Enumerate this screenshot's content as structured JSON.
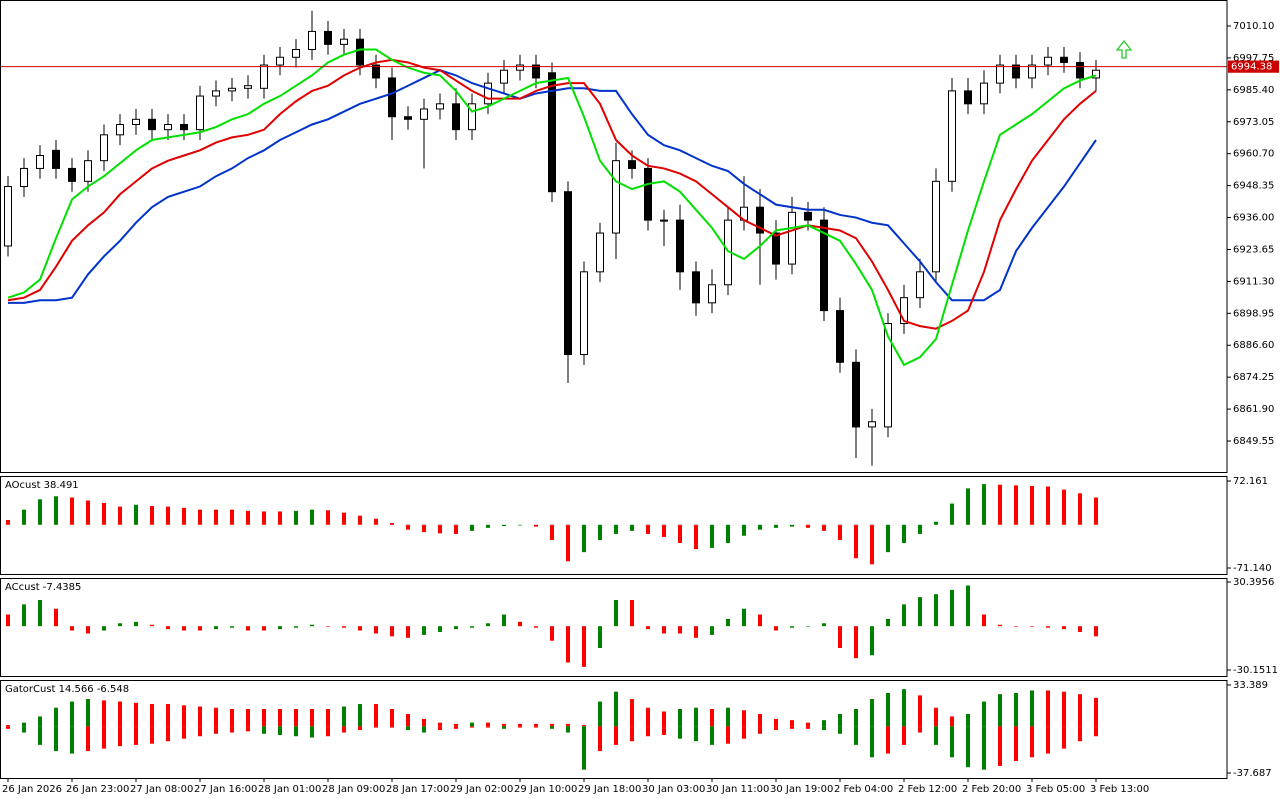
{
  "chart_data": [
    {
      "type": "candlestick",
      "categories": [
        "26 Jan 2026",
        null,
        null,
        null,
        "26 Jan 23:00",
        null,
        null,
        null,
        "27 Jan 08:00",
        null,
        null,
        null,
        "27 Jan 16:00",
        null,
        null,
        null,
        "28 Jan 01:00",
        null,
        null,
        null,
        "28 Jan 09:00",
        null,
        null,
        null,
        "28 Jan 17:00",
        null,
        null,
        null,
        "29 Jan 02:00",
        null,
        null,
        null,
        "29 Jan 10:00",
        null,
        null,
        null,
        "29 Jan 18:00",
        null,
        null,
        null,
        "30 Jan 03:00",
        null,
        null,
        null,
        "30 Jan 11:00",
        null,
        null,
        null,
        "30 Jan 19:00",
        null,
        null,
        null,
        "2 Feb 04:00",
        null,
        null,
        null,
        "2 Feb 12:00",
        null,
        null,
        null,
        "2 Feb 20:00",
        null,
        null,
        null,
        "3 Feb 05:00",
        null,
        null,
        null,
        "3 Feb 13:00"
      ],
      "open": [
        6925,
        6948,
        6955,
        6962,
        6955,
        6950,
        6958,
        6968,
        6972,
        6974,
        6970,
        6972,
        6970,
        6983,
        6985,
        6986,
        6986,
        6995,
        6998,
        7001,
        7008,
        7003,
        7005,
        6995,
        6990,
        6975,
        6974,
        6978,
        6980,
        6970,
        6980,
        6988,
        6993,
        6995,
        6992,
        6946,
        6883,
        6915,
        6930,
        6958,
        6955,
        6935,
        6935,
        6915,
        6903,
        6910,
        6935,
        6940,
        6930,
        6918,
        6938,
        6935,
        6900,
        6880,
        6855,
        6855,
        6895,
        6905,
        6915,
        6950,
        6985,
        6980,
        6988,
        6995,
        6990,
        6995,
        6998,
        6996,
        6990
      ],
      "high": [
        6952,
        6959,
        6964,
        6966,
        6959,
        6962,
        6972,
        6976,
        6978,
        6978,
        6976,
        6976,
        6987,
        6989,
        6990,
        6991,
        6999,
        7002,
        7005,
        7016,
        7012,
        7009,
        7009,
        6999,
        6994,
        6979,
        6982,
        6984,
        6986,
        6984,
        6992,
        6997,
        6999,
        6999,
        6996,
        6950,
        6919,
        6934,
        6965,
        6962,
        6959,
        6939,
        6941,
        6919,
        6916,
        6940,
        6952,
        6947,
        6935,
        6944,
        6942,
        6940,
        6905,
        6885,
        6862,
        6899,
        6910,
        6920,
        6955,
        6990,
        6990,
        6993,
        6999,
        6999,
        6999,
        7002,
        7002,
        7000,
        6997
      ],
      "low": [
        6921,
        6944,
        6951,
        6951,
        6946,
        6946,
        6954,
        6964,
        6968,
        6966,
        6966,
        6966,
        6966,
        6979,
        6981,
        6982,
        6982,
        6991,
        6994,
        6997,
        6999,
        6999,
        6991,
        6986,
        6966,
        6970,
        6955,
        6974,
        6966,
        6966,
        6976,
        6984,
        6989,
        6986,
        6942,
        6872,
        6879,
        6911,
        6920,
        6951,
        6931,
        6925,
        6908,
        6898,
        6899,
        6906,
        6931,
        6910,
        6912,
        6914,
        6931,
        6896,
        6876,
        6843,
        6840,
        6851,
        6891,
        6901,
        6911,
        6946,
        6976,
        6976,
        6984,
        6986,
        6986,
        6991,
        6992,
        6986,
        6985
      ],
      "close": [
        6948,
        6955,
        6960,
        6955,
        6950,
        6958,
        6968,
        6972,
        6974,
        6970,
        6972,
        6970,
        6983,
        6985,
        6986,
        6987,
        6995,
        6998,
        7001,
        7008,
        7003,
        7005,
        6995,
        6990,
        6975,
        6974,
        6978,
        6980,
        6970,
        6980,
        6988,
        6993,
        6995,
        6990,
        6946,
        6883,
        6915,
        6930,
        6958,
        6955,
        6935,
        6935,
        6915,
        6903,
        6910,
        6935,
        6940,
        6930,
        6918,
        6938,
        6935,
        6900,
        6880,
        6855,
        6857,
        6895,
        6905,
        6915,
        6950,
        6985,
        6980,
        6988,
        6995,
        6990,
        6995,
        6998,
        6996,
        6990,
        6993
      ],
      "up_color": "#ffffff",
      "down_color": "#000000",
      "series": [
        {
          "color": "#0033cc",
          "values": [
            6903,
            6903,
            6904,
            6904,
            6905,
            6914,
            6921,
            6927,
            6934,
            6940,
            6944,
            6946,
            6948,
            6952,
            6955,
            6959,
            6962,
            6966,
            6969,
            6972,
            6974,
            6977,
            6980,
            6982,
            6984,
            6987,
            6990,
            6993,
            6991,
            6988,
            6986,
            6984,
            6982,
            6984,
            6985,
            6986,
            6986,
            6985,
            6985,
            6976,
            6968,
            6964,
            6962,
            6959,
            6956,
            6954,
            6949,
            6945,
            6941,
            6940,
            6939,
            6939,
            6937,
            6936,
            6934,
            6933,
            6926,
            6919,
            6911,
            6904,
            6904,
            6904,
            6908,
            6923,
            6932,
            6940,
            6948,
            6957,
            6966
          ]
        },
        {
          "color": "#e00000",
          "values": [
            6904,
            6905,
            6908,
            6917,
            6927,
            6933,
            6938,
            6945,
            6950,
            6955,
            6958,
            6960,
            6962,
            6965,
            6967,
            6968,
            6970,
            6976,
            6981,
            6985,
            6987,
            6991,
            6994,
            6996,
            6997,
            6996,
            6994,
            6993,
            6989,
            6985,
            6982,
            6982,
            6982,
            6985,
            6987,
            6988,
            6988,
            6980,
            6966,
            6960,
            6956,
            6955,
            6953,
            6950,
            6945,
            6940,
            6935,
            6932,
            6929,
            6931,
            6933,
            6932,
            6931,
            6928,
            6919,
            6908,
            6896,
            6894,
            6893,
            6896,
            6900,
            6915,
            6935,
            6947,
            6958,
            6966,
            6974,
            6980,
            6985
          ]
        },
        {
          "color": "#00e000",
          "values": [
            6905,
            6907,
            6912,
            6928,
            6943,
            6948,
            6952,
            6957,
            6962,
            6966,
            6967,
            6968,
            6969,
            6971,
            6974,
            6976,
            6980,
            6983,
            6987,
            6991,
            6996,
            6999,
            7001,
            7001,
            6997,
            6994,
            6992,
            6991,
            6985,
            6977,
            6979,
            6982,
            6985,
            6988,
            6989,
            6990,
            6975,
            6958,
            6950,
            6947,
            6949,
            6950,
            6946,
            6939,
            6932,
            6923,
            6920,
            6925,
            6931,
            6932,
            6933,
            6930,
            6927,
            6918,
            6908,
            6890,
            6879,
            6882,
            6889,
            6910,
            6931,
            6950,
            6968,
            6972,
            6976,
            6981,
            6986,
            6989,
            6991
          ]
        }
      ],
      "last_price": 6994.38,
      "last_price_color": "#cc0000",
      "ylim": [
        6837.56,
        7020.16
      ],
      "yticks": [
        {
          "value": 7010.1,
          "label": "7010.10"
        },
        6997.75,
        {
          "value": 6985.4,
          "label": "6985.40"
        },
        6973.05,
        {
          "value": 6960.7,
          "label": "6960.70"
        },
        6948.35,
        {
          "value": 6936,
          "label": "6936.00"
        },
        6923.65,
        {
          "value": 6911.3,
          "label": "6911.30"
        },
        6898.95,
        {
          "value": 6886.6,
          "label": "6886.60"
        },
        6874.25,
        {
          "value": 6861.9,
          "label": "6861.90"
        },
        6849.55
      ]
    },
    {
      "type": "bar",
      "title": "AOcust 38.491",
      "values": [
        8,
        25,
        42,
        47,
        45,
        40,
        36,
        30,
        33,
        31,
        30,
        28,
        25,
        25,
        25,
        23,
        22,
        22,
        23,
        25,
        24,
        20,
        15,
        10,
        3,
        -8,
        -12,
        -14,
        -15,
        -10,
        -5,
        -2,
        -1,
        -3,
        -25,
        -60,
        -45,
        -25,
        -15,
        -10,
        -15,
        -20,
        -30,
        -40,
        -38,
        -30,
        -18,
        -8,
        -5,
        -3,
        -5,
        -10,
        -25,
        -55,
        -65,
        -45,
        -30,
        -15,
        5,
        35,
        60,
        67,
        66,
        65,
        64,
        63,
        58,
        52,
        45
      ],
      "up_color": "#008000",
      "down_color": "#ff0000",
      "ylim": [
        -81.0,
        80.4
      ],
      "yticks": [
        72.161,
        {
          "value": -71.14,
          "label": "-71.140"
        }
      ]
    },
    {
      "type": "bar",
      "title": "ACcust -7.4385",
      "values": [
        8,
        15,
        18,
        12,
        -3,
        -5,
        -3,
        2,
        3,
        1,
        -2,
        -3,
        -3,
        -2,
        -1,
        -3,
        -3,
        -2,
        -1,
        1,
        0,
        -1,
        -3,
        -5,
        -7,
        -8,
        -6,
        -4,
        -2,
        -1,
        2,
        8,
        3,
        -1,
        -10,
        -25,
        -28,
        -15,
        18,
        18,
        -2,
        -5,
        -5,
        -8,
        -6,
        5,
        12,
        8,
        -3,
        -1,
        0,
        2,
        -15,
        -22,
        -20,
        5,
        15,
        20,
        22,
        25,
        28,
        8,
        1,
        0,
        0,
        -1,
        -2,
        -4,
        -7
      ],
      "up_color": "#008000",
      "down_color": "#ff0000",
      "ylim": [
        -34.28,
        33.15
      ],
      "yticks": [
        30.3956,
        -30.1511
      ]
    },
    {
      "type": "bar",
      "title": "GatorCust 14.566 -6.548",
      "series": [
        {
          "values": [
            1,
            3,
            8,
            15,
            20,
            22,
            21,
            20,
            19,
            18,
            18,
            17,
            16,
            15,
            14,
            14,
            14,
            14,
            14,
            14,
            14,
            16,
            18,
            18,
            14,
            10,
            6,
            3,
            2,
            3,
            3,
            2,
            2,
            2,
            2,
            2,
            1,
            20,
            28,
            22,
            15,
            12,
            14,
            15,
            14,
            15,
            13,
            10,
            6,
            5,
            3,
            5,
            10,
            14,
            22,
            27,
            30,
            25,
            15,
            8,
            10,
            20,
            26,
            27,
            29,
            29,
            28,
            26,
            23
          ]
        },
        {
          "values": [
            -2,
            -5,
            -15,
            -20,
            -22,
            -20,
            -18,
            -16,
            -15,
            -14,
            -12,
            -10,
            -8,
            -6,
            -5,
            -4,
            -6,
            -7,
            -8,
            -9,
            -8,
            -5,
            -3,
            -1,
            -1,
            -3,
            -5,
            -3,
            -2,
            -1,
            -1,
            -2,
            -1,
            -1,
            -2,
            -5,
            -35,
            -20,
            -15,
            -12,
            -8,
            -7,
            -10,
            -12,
            -15,
            -14,
            -10,
            -6,
            -3,
            -2,
            -2,
            -3,
            -6,
            -15,
            -25,
            -22,
            -15,
            -5,
            -15,
            -25,
            -33,
            -35,
            -32,
            -28,
            -25,
            -22,
            -18,
            -12,
            -8
          ]
        }
      ],
      "up_color": "#008000",
      "down_color": "#ff0000",
      "ylim": [
        -41.73,
        37.43
      ],
      "yticks": [
        33.389,
        -37.687
      ]
    }
  ]
}
